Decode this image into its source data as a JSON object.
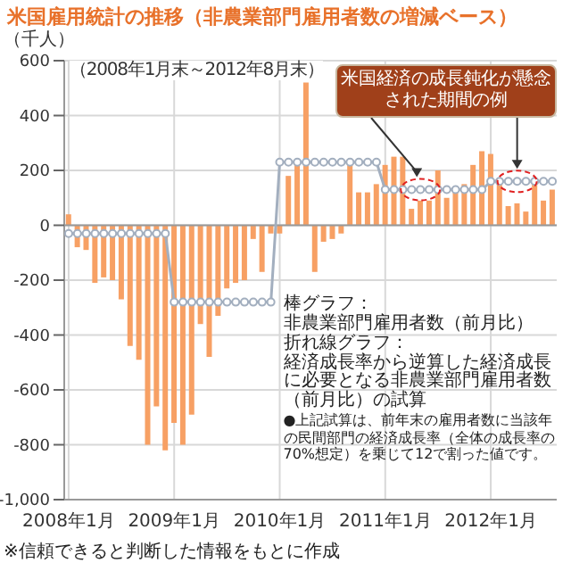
{
  "chart_data": {
    "type": "bar",
    "title": "米国雇用統計の推移（非農業部門雇用者数の増減ベース）",
    "subtitle": "（2008年1月末～2012年8月末）",
    "ylabel": "（千人）",
    "categories": [
      "2008年1月",
      null,
      null,
      null,
      null,
      null,
      null,
      null,
      null,
      null,
      null,
      null,
      "2009年1月",
      null,
      null,
      null,
      null,
      null,
      null,
      null,
      null,
      null,
      null,
      null,
      "2010年1月",
      null,
      null,
      null,
      null,
      null,
      null,
      null,
      null,
      null,
      null,
      null,
      "2011年1月",
      null,
      null,
      null,
      null,
      null,
      null,
      null,
      null,
      null,
      null,
      null,
      "2012年1月",
      null,
      null,
      null,
      null,
      null,
      null,
      null
    ],
    "series": [
      {
        "color": "#f7a064",
        "values": [
          40,
          -80,
          -90,
          -210,
          -190,
          -200,
          -270,
          -440,
          -490,
          -800,
          -660,
          -820,
          -720,
          -800,
          -690,
          -360,
          -480,
          -330,
          -230,
          -210,
          -200,
          -50,
          -170,
          -30,
          -30,
          180,
          230,
          520,
          -170,
          -60,
          -50,
          -30,
          220,
          120,
          120,
          150,
          220,
          250,
          250,
          60,
          90,
          90,
          200,
          100,
          130,
          150,
          220,
          270,
          260,
          150,
          70,
          80,
          50,
          160,
          90,
          130
        ]
      },
      {
        "type": "line",
        "color": "#a3afbf",
        "marker": "circle",
        "values": [
          -30,
          -30,
          -30,
          -30,
          -30,
          -30,
          -30,
          -30,
          -30,
          -30,
          -30,
          -30,
          -280,
          -280,
          -280,
          -280,
          -280,
          -280,
          -280,
          -280,
          -280,
          -280,
          -280,
          -280,
          230,
          230,
          230,
          230,
          230,
          230,
          230,
          230,
          230,
          230,
          230,
          230,
          130,
          130,
          130,
          130,
          130,
          130,
          130,
          130,
          130,
          130,
          130,
          130,
          160,
          160,
          160,
          160,
          160,
          160,
          160,
          160
        ]
      }
    ],
    "ylim": [
      -1000,
      600
    ],
    "yticks": [
      {
        "value": -1000,
        "label": "-1,000"
      },
      -800,
      -600,
      -400,
      -200,
      0,
      200,
      400,
      600
    ],
    "grid": true,
    "annotations": [
      "棒グラフ：",
      "非農業部門雇用者数（前月比）",
      "折れ線グラフ：",
      "経済成長率から逆算した経済成長に必要となる非農業部門雇用者数（前月比）の試算",
      "●上記試算は、前年末の雇用者数に当該年の民間部門の経済成長率（全体の成長率の70%想定）を乗じて12で割った値です。",
      "米国経済の成長鈍化が懸念された期間の例",
      "※信頼できると判断した情報をもとに作成"
    ]
  }
}
